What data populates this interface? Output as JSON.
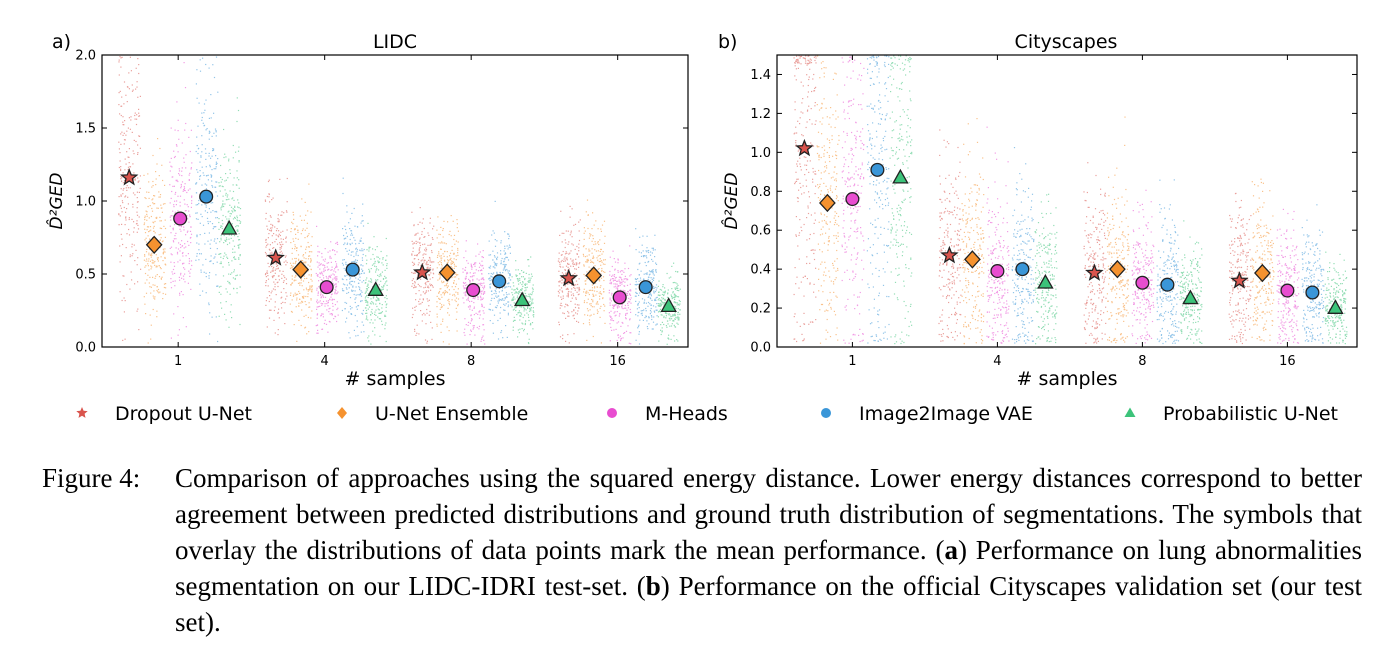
{
  "chart_data": [
    {
      "type": "scatter",
      "panel_label": "a)",
      "title": "LIDC",
      "xlabel": "# samples",
      "ylabel": "D̂²GED",
      "categories": [
        "1",
        "4",
        "8",
        "16"
      ],
      "ylim": [
        0.0,
        2.0
      ],
      "yticks": [
        "0.0",
        "0.5",
        "1.0",
        "1.5",
        "2.0"
      ],
      "series": [
        {
          "name": "Dropout U-Net",
          "marker": "star",
          "color": "#d9544d",
          "values": [
            1.16,
            0.61,
            0.51,
            0.47
          ]
        },
        {
          "name": "U-Net Ensemble",
          "marker": "diamond",
          "color": "#f5922f",
          "values": [
            0.7,
            0.53,
            0.51,
            0.49
          ]
        },
        {
          "name": "M-Heads",
          "marker": "circle",
          "color": "#e84dd0",
          "values": [
            0.88,
            0.41,
            0.39,
            0.34
          ]
        },
        {
          "name": "Image2Image VAE",
          "marker": "circle",
          "color": "#3a96d8",
          "values": [
            1.03,
            0.53,
            0.45,
            0.41
          ]
        },
        {
          "name": "Probabilistic U-Net",
          "marker": "triangle",
          "color": "#3cc37a",
          "values": [
            0.81,
            0.39,
            0.32,
            0.28
          ]
        }
      ]
    },
    {
      "type": "scatter",
      "panel_label": "b)",
      "title": "Cityscapes",
      "xlabel": "# samples",
      "ylabel": "D̂²GED",
      "categories": [
        "1",
        "4",
        "8",
        "16"
      ],
      "ylim": [
        0.0,
        1.5
      ],
      "yticks": [
        "0.0",
        "0.2",
        "0.4",
        "0.6",
        "0.8",
        "1.0",
        "1.2",
        "1.4"
      ],
      "series": [
        {
          "name": "Dropout U-Net",
          "marker": "star",
          "color": "#d9544d",
          "values": [
            1.02,
            0.47,
            0.38,
            0.34
          ]
        },
        {
          "name": "U-Net Ensemble",
          "marker": "diamond",
          "color": "#f5922f",
          "values": [
            0.74,
            0.45,
            0.4,
            0.38
          ]
        },
        {
          "name": "M-Heads",
          "marker": "circle",
          "color": "#e84dd0",
          "values": [
            0.76,
            0.39,
            0.33,
            0.29
          ]
        },
        {
          "name": "Image2Image VAE",
          "marker": "circle",
          "color": "#3a96d8",
          "values": [
            0.91,
            0.4,
            0.32,
            0.28
          ]
        },
        {
          "name": "Probabilistic U-Net",
          "marker": "triangle",
          "color": "#3cc37a",
          "values": [
            0.87,
            0.33,
            0.25,
            0.2
          ]
        }
      ]
    }
  ],
  "legend": {
    "placement": "bottom",
    "items": [
      "Dropout U-Net",
      "U-Net Ensemble",
      "M-Heads",
      "Image2Image VAE",
      "Probabilistic U-Net"
    ]
  },
  "caption": {
    "lead": "Figure 4:",
    "body_1": "Comparison of approaches using the squared energy distance. Lower energy distances correspond to better agreement between predicted distributions and ground truth distribution of segmentations. The symbols that overlay the distributions of data points mark the mean performance. (",
    "bold_a": "a",
    "body_2": ") Performance on lung abnormalities segmentation on our LIDC-IDRI test-set. (",
    "bold_b": "b",
    "body_3": ") Performance on the official Cityscapes validation set (our test set)."
  }
}
